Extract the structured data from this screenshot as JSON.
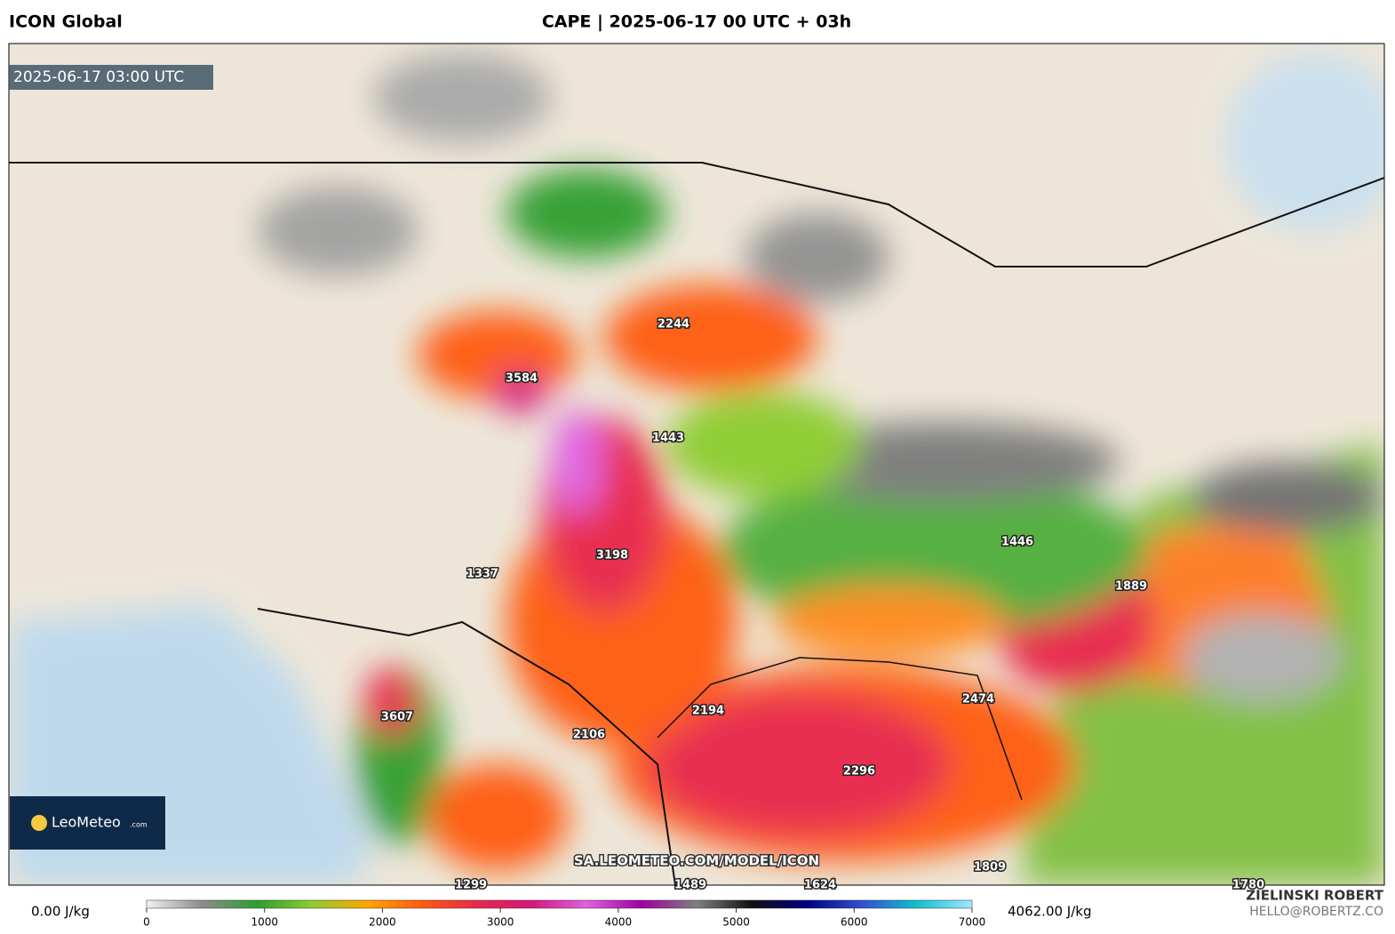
{
  "header": {
    "model": "ICON Global",
    "title": "CAPE | 2025-06-17 00 UTC + 03h"
  },
  "map": {
    "timestamp": "2025-06-17 03:00 UTC",
    "watermark": "SA.LEOMETEO.COM/MODEL/ICON",
    "labels": [
      "3584",
      "2244",
      "1443",
      "3198",
      "1337",
      "3607",
      "2106",
      "2194",
      "2296",
      "2474",
      "1446",
      "1889",
      "1809",
      "1299",
      "1489",
      "1624",
      "1780"
    ]
  },
  "logo": {
    "name": "LeoMeteo",
    "suffix": ".com"
  },
  "colorbar": {
    "min_label": "0.00 J/kg",
    "max_label": "4062.00 J/kg",
    "range": [
      0,
      7000
    ],
    "ticks": [
      0,
      1000,
      2000,
      3000,
      4000,
      5000,
      6000,
      7000
    ],
    "colors": [
      "#f2f2f2",
      "#8c8c8c",
      "#2e9e2e",
      "#8ccc2e",
      "#ffa500",
      "#ff5a10",
      "#e8284a",
      "#d4187c",
      "#e060e0",
      "#a000a0",
      "#808080",
      "#101010",
      "#000080",
      "#3050d0",
      "#10c0d0",
      "#a0e8ff"
    ]
  },
  "credit": {
    "author": "ZIELINSKI ROBERT",
    "email": "HELLO@ROBERTZ.CO"
  }
}
